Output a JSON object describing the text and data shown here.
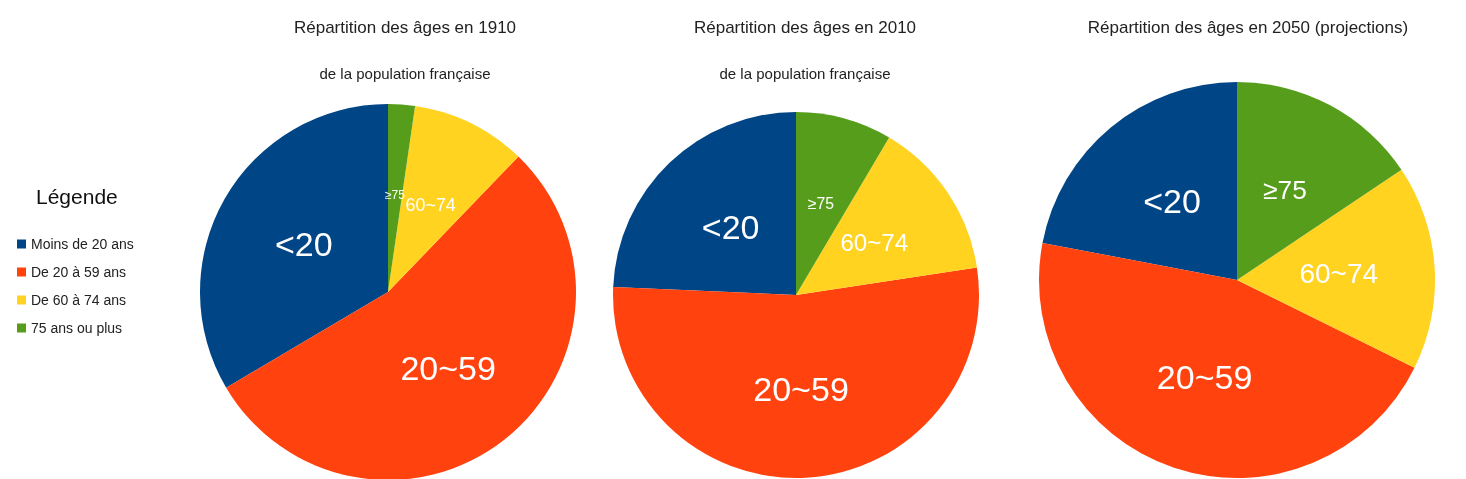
{
  "chart_data": [
    {
      "type": "pie",
      "title": "Répartition des âges en 1910",
      "subtitle": "de la population française",
      "legend_title": "Légende",
      "legend": "left",
      "categories": [
        "Moins de 20 ans",
        "De 20 à 59 ans",
        "De 60 à 74 ans",
        "75 ans ou plus"
      ],
      "values": [
        33.5,
        54.3,
        9.9,
        2.3
      ],
      "annotations": [
        "<20",
        "20~59",
        "60~74",
        "≥75"
      ],
      "colors": [
        "#004586",
        "#ff420e",
        "#ffd320",
        "#579d1c"
      ]
    },
    {
      "type": "pie",
      "title": "Répartition des âges en 2010",
      "subtitle": "de la population française",
      "categories": [
        "<20",
        "20~59",
        "60~74",
        "≥75"
      ],
      "values": [
        24.3,
        53.1,
        14.1,
        8.5
      ],
      "colors": [
        "#004586",
        "#ff420e",
        "#ffd320",
        "#579d1c"
      ]
    },
    {
      "type": "pie",
      "title": "Répartition des âges en 2050 (projections)",
      "categories": [
        "<20",
        "20~59",
        "60~74",
        "≥75"
      ],
      "values": [
        22.0,
        45.7,
        16.7,
        15.6
      ],
      "colors": [
        "#004586",
        "#ff420e",
        "#ffd320",
        "#579d1c"
      ]
    }
  ]
}
